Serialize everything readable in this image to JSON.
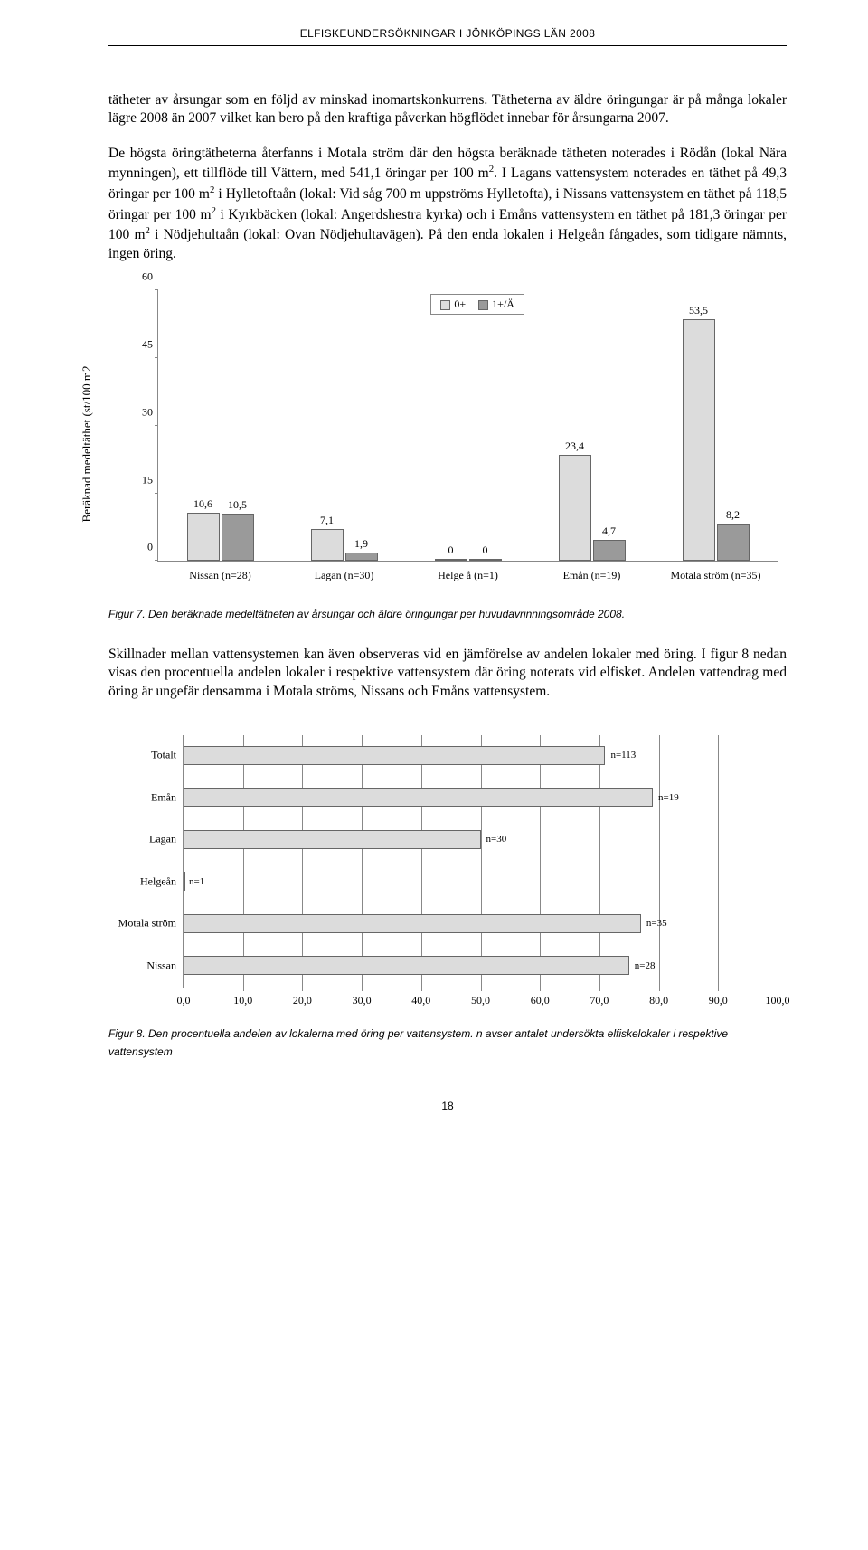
{
  "header": {
    "title": "ELFISKEUNDERSÖKNINGAR I JÖNKÖPINGS LÄN 2008"
  },
  "paragraphs": {
    "p1": "tätheter av årsungar som en följd av minskad inomartskonkurrens. Tätheterna av äldre öringungar är på många lokaler lägre 2008 än 2007 vilket kan bero på den kraftiga påverkan högflödet innebar för årsungarna 2007.",
    "p2a": "De högsta öringtätheterna återfanns i Motala ström där den högsta beräknade tätheten noterades i Rödån (lokal Nära mynningen), ett tillflöde till Vättern, med 541,1 öringar per 100 m",
    "p2b": ". I Lagans vattensystem noterades en täthet på 49,3 öringar per 100 m",
    "p2c": " i Hylletoftaån (lokal: Vid såg 700 m uppströms Hylletofta), i Nissans vattensystem en täthet på 118,5 öringar per 100 m",
    "p2d": " i Kyrkbäcken (lokal: Angerdshestra kyrka) och i Emåns vattensystem en täthet på 181,3 öringar per 100 m",
    "p2e": " i Nödjehultaån (lokal: Ovan Nödjehultavägen). På den enda lokalen i Helgeån fångades, som tidigare nämnts, ingen öring.",
    "p3": "Skillnader mellan vattensystemen kan även observeras vid en jämförelse av andelen lokaler med öring. I figur 8 nedan visas den procentuella andelen lokaler i respektive vattensystem där öring noterats vid elfisket. Andelen vattendrag med öring är ungefär densamma i Motala ströms, Nissans och Emåns vattensystem.",
    "sup2": "2"
  },
  "chart1": {
    "y_label": "Beräknad medeltäthet (st/100 m2",
    "y_ticks": [
      "0",
      "15",
      "30",
      "45",
      "60"
    ],
    "y_max": 60,
    "legend": [
      {
        "label": "0+",
        "color": "#dcdcdc"
      },
      {
        "label": "1+/Ä",
        "color": "#9a9a9a"
      }
    ],
    "color_0": "#dcdcdc",
    "color_1": "#9a9a9a",
    "groups": [
      {
        "label": "Nissan (n=28)",
        "v0": 10.6,
        "v1": 10.5,
        "l0": "10,6",
        "l1": "10,5"
      },
      {
        "label": "Lagan (n=30)",
        "v0": 7.1,
        "v1": 1.9,
        "l0": "7,1",
        "l1": "1,9"
      },
      {
        "label": "Helge å (n=1)",
        "v0": 0,
        "v1": 0,
        "l0": "0",
        "l1": "0"
      },
      {
        "label": "Emån (n=19)",
        "v0": 23.4,
        "v1": 4.7,
        "l0": "23,4",
        "l1": "4,7"
      },
      {
        "label": "Motala ström (n=35)",
        "v0": 53.5,
        "v1": 8.2,
        "l0": "53,5",
        "l1": "8,2"
      }
    ]
  },
  "fig7_caption": "Figur 7. Den beräknade medeltätheten av årsungar och äldre öringungar per huvudavrinningsområde 2008.",
  "chart2": {
    "x_ticks": [
      "0,0",
      "10,0",
      "20,0",
      "30,0",
      "40,0",
      "50,0",
      "60,0",
      "70,0",
      "80,0",
      "90,0",
      "100,0"
    ],
    "x_max": 100,
    "bar_color": "#dcdcdc",
    "rows": [
      {
        "cat": "Totalt",
        "val": 71,
        "n": "n=113"
      },
      {
        "cat": "Emån",
        "val": 79,
        "n": "n=19"
      },
      {
        "cat": "Lagan",
        "val": 50,
        "n": "n=30"
      },
      {
        "cat": "Helgeån",
        "val": 0,
        "n": "n=1"
      },
      {
        "cat": "Motala ström",
        "val": 77,
        "n": "n=35"
      },
      {
        "cat": "Nissan",
        "val": 75,
        "n": "n=28"
      }
    ]
  },
  "fig8_caption": "Figur 8. Den procentuella andelen av lokalerna med öring per vattensystem. n avser antalet undersökta elfiskelokaler i respektive vattensystem",
  "page_number": "18"
}
